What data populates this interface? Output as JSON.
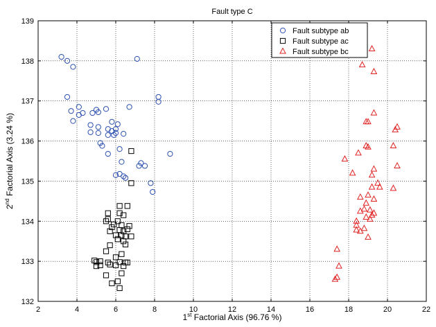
{
  "chart_data": {
    "type": "scatter",
    "title": "Fault type C",
    "xlabel": {
      "prefix": "1",
      "sup": "st",
      "rest": " Factorial Axis (96.76 %)"
    },
    "ylabel": {
      "prefix": "2",
      "sup": "nd",
      "rest": " Factorial Axis (3.24 %)"
    },
    "xlim": [
      2,
      22
    ],
    "ylim": [
      132,
      139
    ],
    "xticks": [
      "2",
      "4",
      "6",
      "8",
      "10",
      "12",
      "14",
      "16",
      "18",
      "20",
      "22"
    ],
    "yticks": [
      "132",
      "133",
      "134",
      "135",
      "136",
      "137",
      "138",
      "139"
    ],
    "grid": true,
    "legend_position": "top-right",
    "series": [
      {
        "name": "Fault subtype ab",
        "marker": "circle",
        "color": "#2b4fb0",
        "points": [
          [
            3.2,
            138.1
          ],
          [
            3.5,
            138.0
          ],
          [
            3.8,
            137.85
          ],
          [
            7.1,
            138.05
          ],
          [
            3.5,
            137.1
          ],
          [
            8.2,
            137.1
          ],
          [
            8.2,
            136.98
          ],
          [
            3.7,
            136.75
          ],
          [
            4.1,
            136.85
          ],
          [
            4.1,
            136.65
          ],
          [
            4.3,
            136.7
          ],
          [
            3.8,
            136.5
          ],
          [
            5.0,
            136.78
          ],
          [
            5.1,
            136.72
          ],
          [
            4.8,
            136.7
          ],
          [
            5.5,
            136.8
          ],
          [
            6.7,
            136.85
          ],
          [
            4.7,
            136.4
          ],
          [
            5.1,
            136.35
          ],
          [
            5.8,
            136.48
          ],
          [
            6.1,
            136.42
          ],
          [
            4.7,
            136.22
          ],
          [
            5.6,
            136.3
          ],
          [
            5.8,
            136.25
          ],
          [
            6.0,
            136.3
          ],
          [
            6.4,
            136.18
          ],
          [
            5.1,
            136.2
          ],
          [
            5.6,
            136.15
          ],
          [
            5.9,
            136.15
          ],
          [
            6.0,
            136.2
          ],
          [
            5.2,
            135.95
          ],
          [
            5.3,
            135.88
          ],
          [
            6.2,
            135.8
          ],
          [
            8.8,
            135.68
          ],
          [
            5.6,
            135.68
          ],
          [
            6.3,
            135.48
          ],
          [
            7.3,
            135.45
          ],
          [
            7.2,
            135.38
          ],
          [
            7.5,
            135.38
          ],
          [
            6.0,
            135.15
          ],
          [
            6.2,
            135.18
          ],
          [
            6.4,
            135.12
          ],
          [
            6.5,
            135.08
          ],
          [
            7.8,
            134.95
          ],
          [
            7.9,
            134.73
          ]
        ]
      },
      {
        "name": "Fault subtype ac",
        "marker": "square",
        "color": "#000000",
        "points": [
          [
            6.8,
            135.75
          ],
          [
            6.8,
            134.95
          ],
          [
            6.2,
            134.38
          ],
          [
            6.6,
            134.38
          ],
          [
            5.6,
            134.2
          ],
          [
            6.2,
            134.2
          ],
          [
            5.6,
            134.05
          ],
          [
            6.4,
            134.15
          ],
          [
            5.5,
            134.0
          ],
          [
            5.9,
            133.92
          ],
          [
            6.1,
            134.0
          ],
          [
            5.8,
            133.85
          ],
          [
            6.3,
            133.9
          ],
          [
            6.7,
            133.88
          ],
          [
            5.7,
            133.75
          ],
          [
            6.2,
            133.78
          ],
          [
            6.4,
            133.75
          ],
          [
            6.6,
            133.8
          ],
          [
            6.0,
            133.65
          ],
          [
            6.3,
            133.65
          ],
          [
            6.5,
            133.62
          ],
          [
            6.8,
            133.62
          ],
          [
            6.1,
            133.55
          ],
          [
            6.4,
            133.5
          ],
          [
            6.5,
            133.42
          ],
          [
            5.7,
            133.4
          ],
          [
            5.5,
            133.25
          ],
          [
            6.3,
            133.18
          ],
          [
            6.0,
            133.1
          ],
          [
            4.9,
            133.02
          ],
          [
            5.0,
            132.98
          ],
          [
            5.2,
            133.0
          ],
          [
            5.6,
            132.97
          ],
          [
            6.2,
            132.98
          ],
          [
            6.5,
            132.97
          ],
          [
            6.6,
            132.97
          ],
          [
            5.0,
            132.88
          ],
          [
            5.2,
            132.9
          ],
          [
            5.7,
            132.92
          ],
          [
            6.0,
            132.9
          ],
          [
            6.4,
            132.88
          ],
          [
            6.3,
            132.7
          ],
          [
            5.5,
            132.65
          ],
          [
            6.1,
            132.5
          ],
          [
            5.8,
            132.45
          ],
          [
            6.2,
            132.33
          ]
        ]
      },
      {
        "name": "Fault subtype bc",
        "marker": "triangle",
        "color": "#e02020",
        "points": [
          [
            19.2,
            138.3
          ],
          [
            18.7,
            137.9
          ],
          [
            19.3,
            137.73
          ],
          [
            19.3,
            136.7
          ],
          [
            19.0,
            136.48
          ],
          [
            18.9,
            136.48
          ],
          [
            20.5,
            136.35
          ],
          [
            20.4,
            136.28
          ],
          [
            18.9,
            135.88
          ],
          [
            19.0,
            135.85
          ],
          [
            20.3,
            135.88
          ],
          [
            18.5,
            135.7
          ],
          [
            17.8,
            135.55
          ],
          [
            19.3,
            135.3
          ],
          [
            18.2,
            135.2
          ],
          [
            19.2,
            135.15
          ],
          [
            20.5,
            135.38
          ],
          [
            19.5,
            134.95
          ],
          [
            19.6,
            134.85
          ],
          [
            20.3,
            134.82
          ],
          [
            19.2,
            134.85
          ],
          [
            19.0,
            134.65
          ],
          [
            18.6,
            134.6
          ],
          [
            18.9,
            134.45
          ],
          [
            19.3,
            134.55
          ],
          [
            18.8,
            134.3
          ],
          [
            19.1,
            134.28
          ],
          [
            18.6,
            134.25
          ],
          [
            19.3,
            134.2
          ],
          [
            18.9,
            134.1
          ],
          [
            19.1,
            134.05
          ],
          [
            19.2,
            134.15
          ],
          [
            18.4,
            134.0
          ],
          [
            18.4,
            133.9
          ],
          [
            18.8,
            133.82
          ],
          [
            18.4,
            133.78
          ],
          [
            18.6,
            133.75
          ],
          [
            19.0,
            133.6
          ],
          [
            17.4,
            133.3
          ],
          [
            17.5,
            132.88
          ],
          [
            17.4,
            132.6
          ],
          [
            17.3,
            132.55
          ]
        ]
      }
    ]
  }
}
